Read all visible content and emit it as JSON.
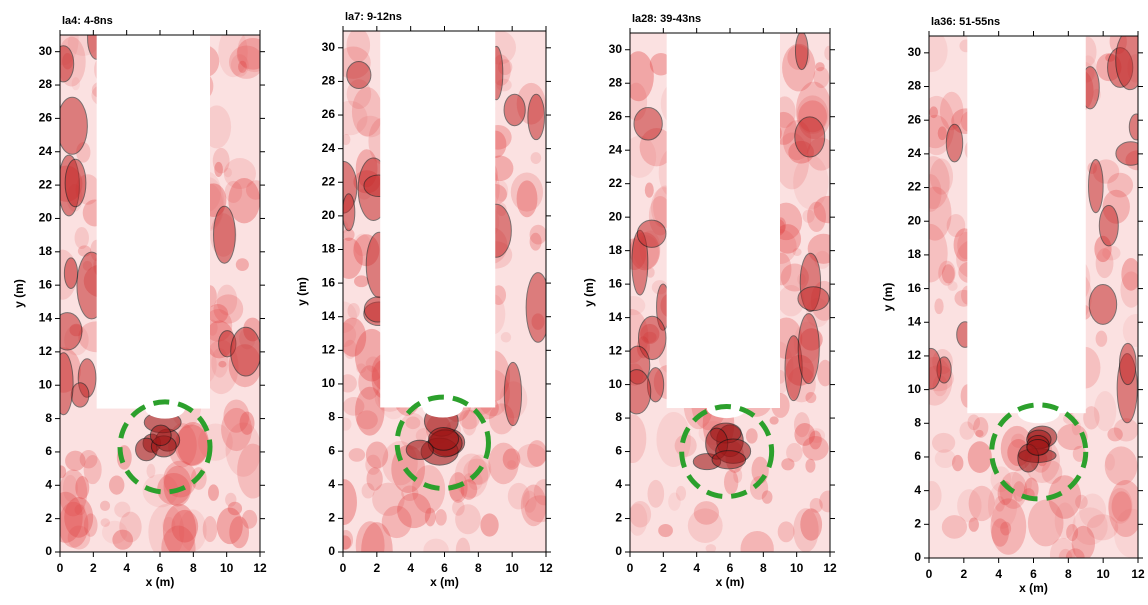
{
  "chart_data": [
    {
      "type": "heatmap",
      "title": "la4: 4-8ns",
      "xlabel": "x (m)",
      "ylabel": "y (m)",
      "xlim": [
        0,
        12
      ],
      "ylim": [
        0,
        31
      ],
      "xticks": [
        0,
        2,
        4,
        6,
        8,
        10,
        12
      ],
      "yticks": [
        0,
        2,
        4,
        6,
        8,
        10,
        12,
        14,
        16,
        18,
        20,
        22,
        24,
        26,
        28,
        30
      ]
    },
    {
      "type": "heatmap",
      "title": "la7: 9-12ns",
      "xlabel": "x (m)",
      "ylabel": "y (m)",
      "xlim": [
        0,
        12
      ],
      "ylim": [
        0,
        31
      ],
      "xticks": [
        0,
        2,
        4,
        6,
        8,
        10,
        12
      ],
      "yticks": [
        0,
        2,
        4,
        6,
        8,
        10,
        12,
        14,
        16,
        18,
        20,
        22,
        24,
        26,
        28,
        30
      ]
    },
    {
      "type": "heatmap",
      "title": "la28: 39-43ns",
      "xlabel": "x (m)",
      "ylabel": "y (m)",
      "xlim": [
        0,
        12
      ],
      "ylim": [
        0,
        31
      ],
      "xticks": [
        0,
        2,
        4,
        6,
        8,
        10,
        12
      ],
      "yticks": [
        0,
        2,
        4,
        6,
        8,
        10,
        12,
        14,
        16,
        18,
        20,
        22,
        24,
        26,
        28,
        30
      ]
    },
    {
      "type": "heatmap",
      "title": "la36: 51-55ns",
      "xlabel": "x (m)",
      "ylabel": "y (m)",
      "xlim": [
        0,
        12
      ],
      "ylim": [
        0,
        31
      ],
      "xticks": [
        0,
        2,
        4,
        6,
        8,
        10,
        12
      ],
      "yticks": [
        0,
        2,
        4,
        6,
        8,
        10,
        12,
        14,
        16,
        18,
        20,
        22,
        24,
        26,
        28,
        30
      ]
    }
  ]
}
